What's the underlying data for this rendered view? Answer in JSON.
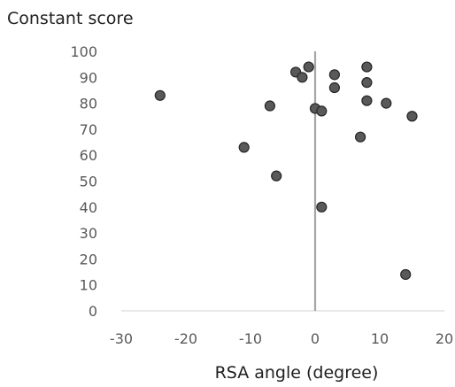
{
  "chart_data": {
    "type": "scatter",
    "title": "Constant score",
    "xlabel": "RSA angle (degree)",
    "ylabel": "",
    "xlim": [
      -30,
      20
    ],
    "ylim": [
      0,
      100
    ],
    "x_ticks": [
      "-30",
      "-20",
      "-10",
      "0",
      "10",
      "20"
    ],
    "y_ticks": [
      "0",
      "10",
      "20",
      "30",
      "40",
      "50",
      "60",
      "70",
      "80",
      "90",
      "100"
    ],
    "grid": false,
    "legend": "none",
    "series": [
      {
        "points": [
          {
            "x": -24,
            "y": 83
          },
          {
            "x": -11,
            "y": 63
          },
          {
            "x": -7,
            "y": 79
          },
          {
            "x": -6,
            "y": 52
          },
          {
            "x": -3,
            "y": 92
          },
          {
            "x": -2,
            "y": 90
          },
          {
            "x": -1,
            "y": 94
          },
          {
            "x": 0,
            "y": 78
          },
          {
            "x": 1,
            "y": 77
          },
          {
            "x": 1,
            "y": 40
          },
          {
            "x": 3,
            "y": 91
          },
          {
            "x": 3,
            "y": 86
          },
          {
            "x": 7,
            "y": 67
          },
          {
            "x": 8,
            "y": 94
          },
          {
            "x": 8,
            "y": 88
          },
          {
            "x": 8,
            "y": 81
          },
          {
            "x": 11,
            "y": 80
          },
          {
            "x": 14,
            "y": 14
          },
          {
            "x": 15,
            "y": 75
          }
        ]
      }
    ],
    "colors": {
      "marker_fill": "#595959",
      "marker_stroke": "#262626",
      "zero_line": "#a6a6a6",
      "axis": "#d9d9d9"
    }
  }
}
